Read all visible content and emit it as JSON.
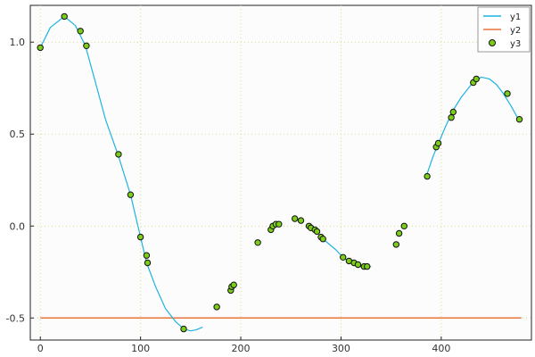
{
  "chart_data": {
    "type": "line",
    "title": "",
    "xlabel": "",
    "ylabel": "",
    "xlim": [
      -10,
      490
    ],
    "ylim": [
      -0.62,
      1.2
    ],
    "grid": true,
    "legend": "top-right",
    "x_ticks": [
      0,
      100,
      200,
      300,
      400
    ],
    "y_ticks": [
      -0.5,
      0.0,
      0.5,
      1.0
    ],
    "x_tick_labels": [
      "0",
      "100",
      "200",
      "300",
      "400"
    ],
    "y_tick_labels": [
      "-0.5",
      "0.0",
      "0.5",
      "1.0"
    ],
    "series": [
      {
        "name": "y1",
        "kind": "line",
        "color": "#1fb3e0",
        "segments": [
          {
            "x": [
              0,
              10,
              24,
              35,
              45,
              55,
              65,
              78,
              90,
              100,
              106,
              115,
              125,
              135,
              143,
              150,
              155,
              162
            ],
            "y": [
              0.97,
              1.08,
              1.14,
              1.09,
              0.98,
              0.78,
              0.58,
              0.38,
              0.17,
              -0.06,
              -0.2,
              -0.33,
              -0.45,
              -0.52,
              -0.56,
              -0.57,
              -0.565,
              -0.55
            ]
          },
          {
            "x": [
              282,
              295,
              302,
              310,
              318,
              326,
              330
            ],
            "y": [
              -0.07,
              -0.13,
              -0.17,
              -0.2,
              -0.22,
              -0.225,
              -0.22
            ]
          },
          {
            "x": [
              385,
              392,
              398,
              405,
              412,
              420,
              430,
              440,
              448,
              455,
              462,
              470,
              478
            ],
            "y": [
              0.27,
              0.38,
              0.46,
              0.55,
              0.63,
              0.7,
              0.77,
              0.81,
              0.8,
              0.77,
              0.72,
              0.65,
              0.57
            ]
          }
        ]
      },
      {
        "name": "y2",
        "kind": "line",
        "color": "#e8743b",
        "x": [
          0,
          480
        ],
        "y": [
          -0.5,
          -0.5
        ]
      },
      {
        "name": "y3",
        "kind": "scatter",
        "color": "#7ccd1a",
        "x": [
          0,
          24,
          40,
          46,
          78,
          90,
          100,
          106,
          107,
          143,
          176,
          190,
          191,
          193,
          217,
          230,
          232,
          235,
          238,
          254,
          260,
          268,
          270,
          274,
          276,
          280,
          282,
          302,
          308,
          313,
          317,
          323,
          326,
          355,
          358,
          363,
          386,
          395,
          397,
          410,
          412,
          432,
          435,
          466,
          478
        ],
        "y": [
          0.97,
          1.14,
          1.06,
          0.98,
          0.39,
          0.17,
          -0.06,
          -0.16,
          -0.2,
          -0.56,
          -0.44,
          -0.35,
          -0.33,
          -0.32,
          -0.09,
          -0.02,
          0.0,
          0.01,
          0.01,
          0.04,
          0.03,
          0.0,
          -0.01,
          -0.02,
          -0.03,
          -0.06,
          -0.07,
          -0.17,
          -0.19,
          -0.2,
          -0.21,
          -0.22,
          -0.22,
          -0.1,
          -0.04,
          0.0,
          0.27,
          0.43,
          0.45,
          0.59,
          0.62,
          0.78,
          0.8,
          0.72,
          0.58
        ]
      }
    ]
  }
}
